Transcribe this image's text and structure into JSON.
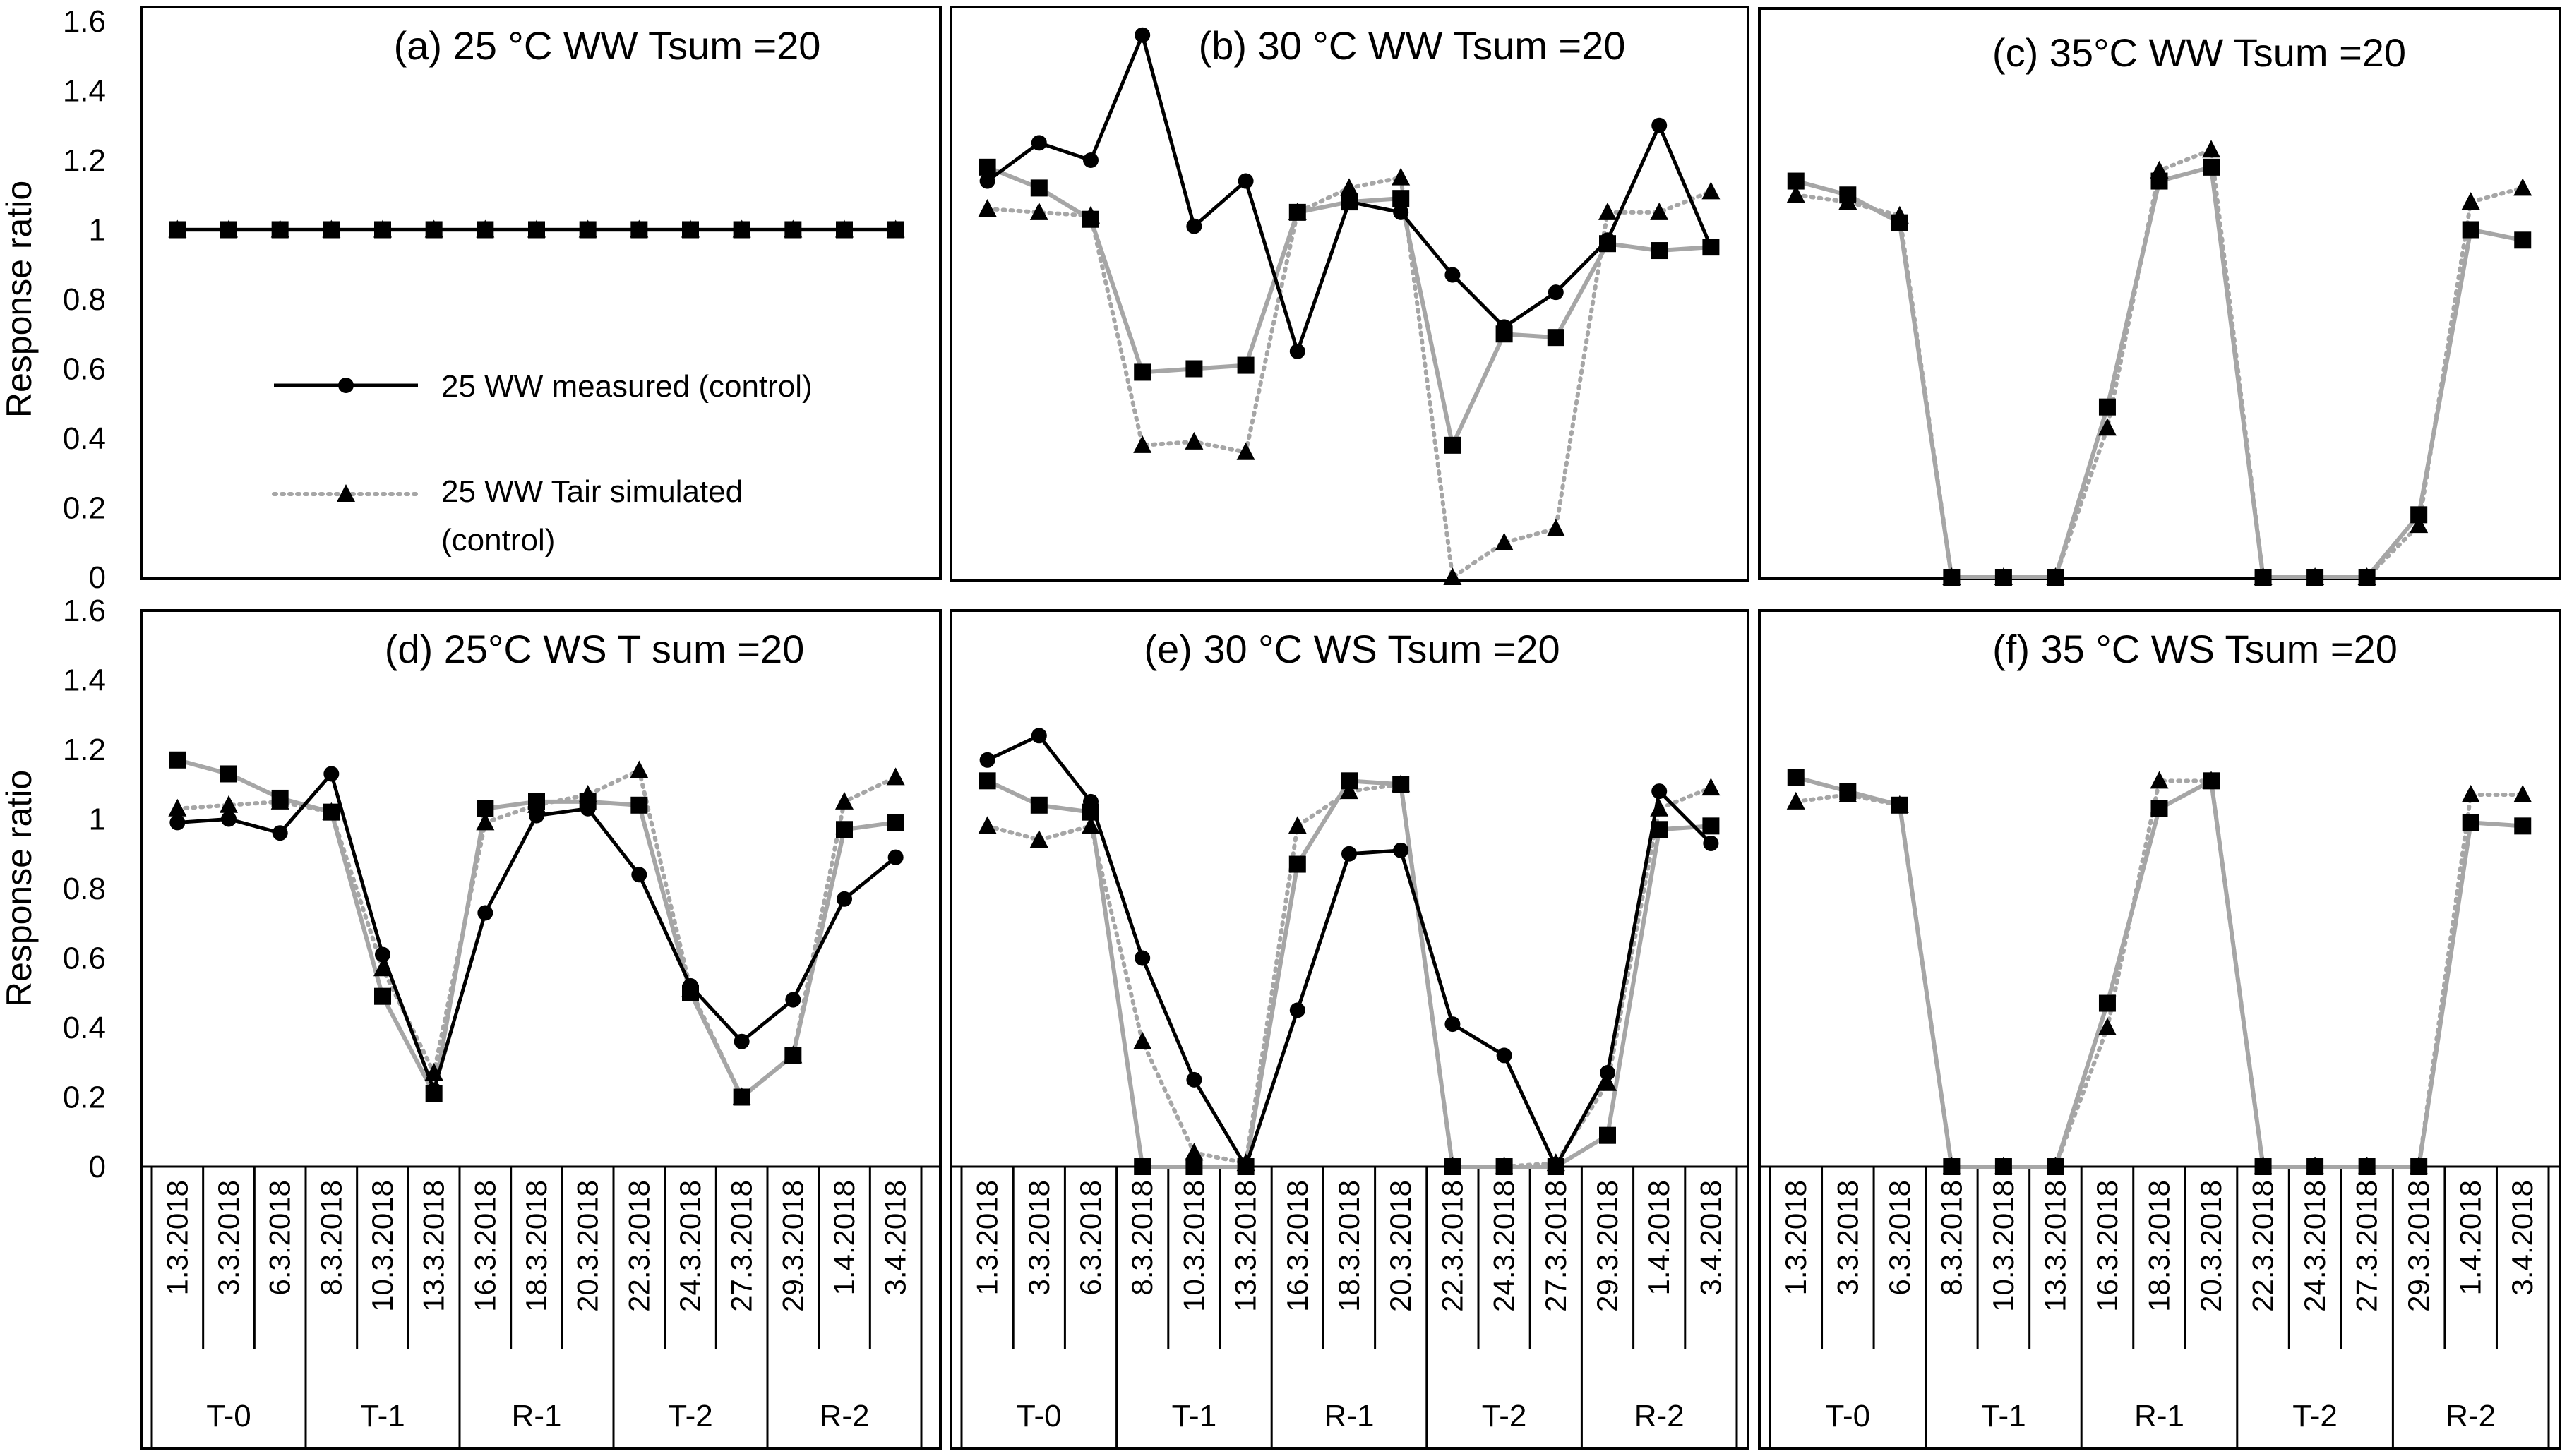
{
  "chart_data": [
    {
      "type": "line",
      "title": "(a) 25 °C WW Tsum =20",
      "ylabel": "Response ratio",
      "ylim": [
        0,
        1.6
      ],
      "yticks": [
        "0",
        "0.2",
        "0.4",
        "0.6",
        "0.8",
        "1",
        "1.2",
        "1.4",
        "1.6"
      ],
      "grid": false,
      "legend_position": "center-left",
      "series": [
        {
          "name": "25 WW measured (control)",
          "marker": "circle",
          "line": "solid",
          "color": "#000000",
          "values": [
            1,
            1,
            1,
            1,
            1,
            1,
            1,
            1,
            1,
            1,
            1,
            1,
            1,
            1,
            1
          ]
        },
        {
          "name": "",
          "marker": "square",
          "line": "solid",
          "color": "#a6a6a6",
          "values": [
            1,
            1,
            1,
            1,
            1,
            1,
            1,
            1,
            1,
            1,
            1,
            1,
            1,
            1,
            1
          ]
        },
        {
          "name": "25 WW Tair simulated (control)",
          "marker": "triangle",
          "line": "dotted",
          "color": "#a6a6a6",
          "values": [
            1,
            1,
            1,
            1,
            1,
            1,
            1,
            1,
            1,
            1,
            1,
            1,
            1,
            1,
            1
          ]
        }
      ]
    },
    {
      "type": "line",
      "title": "(b) 30 °C WW Tsum =20",
      "ylim": [
        0,
        1.6
      ],
      "series": [
        {
          "name": "",
          "marker": "circle",
          "line": "solid",
          "color": "#000000",
          "values": [
            1.14,
            1.25,
            1.2,
            1.56,
            1.01,
            1.14,
            0.65,
            1.08,
            1.05,
            0.87,
            0.72,
            0.82,
            0.97,
            1.3,
            0.95
          ]
        },
        {
          "name": "",
          "marker": "square",
          "line": "solid",
          "color": "#a6a6a6",
          "values": [
            1.18,
            1.12,
            1.03,
            0.59,
            0.6,
            0.61,
            1.05,
            1.08,
            1.09,
            0.38,
            0.7,
            0.69,
            0.96,
            0.94,
            0.95
          ]
        },
        {
          "name": "",
          "marker": "triangle",
          "line": "dotted",
          "color": "#a6a6a6",
          "values": [
            1.06,
            1.05,
            1.04,
            0.38,
            0.39,
            0.36,
            1.05,
            1.12,
            1.15,
            0.0,
            0.1,
            0.14,
            1.05,
            1.05,
            1.11
          ]
        }
      ]
    },
    {
      "type": "line",
      "title": "(c) 35°C WW Tsum =20",
      "ylim": [
        0,
        1.6
      ],
      "series": [
        {
          "name": "",
          "marker": "square",
          "line": "solid",
          "color": "#a6a6a6",
          "values": [
            1.14,
            1.1,
            1.02,
            0.0,
            0.0,
            0.0,
            0.49,
            1.14,
            1.18,
            0.0,
            0.0,
            0.0,
            0.18,
            1.0,
            0.97
          ]
        },
        {
          "name": "",
          "marker": "triangle",
          "line": "dotted",
          "color": "#a6a6a6",
          "values": [
            1.1,
            1.08,
            1.04,
            0.0,
            0.0,
            0.0,
            0.43,
            1.17,
            1.23,
            0.0,
            0.0,
            0.0,
            0.15,
            1.08,
            1.12
          ]
        }
      ]
    },
    {
      "type": "line",
      "title": "(d) 25°C WS T sum =20",
      "ylabel": "Response ratio",
      "ylim": [
        0,
        1.6
      ],
      "yticks": [
        "0",
        "0.2",
        "0.4",
        "0.6",
        "0.8",
        "1",
        "1.2",
        "1.4",
        "1.6"
      ],
      "series": [
        {
          "name": "",
          "marker": "circle",
          "line": "solid",
          "color": "#000000",
          "values": [
            0.99,
            1.0,
            0.96,
            1.13,
            0.61,
            0.22,
            0.73,
            1.01,
            1.03,
            0.84,
            0.52,
            0.36,
            0.48,
            0.77,
            0.89
          ]
        },
        {
          "name": "",
          "marker": "square",
          "line": "solid",
          "color": "#a6a6a6",
          "values": [
            1.17,
            1.13,
            1.06,
            1.02,
            0.49,
            0.21,
            1.03,
            1.05,
            1.05,
            1.04,
            0.5,
            0.2,
            0.32,
            0.97,
            0.99
          ]
        },
        {
          "name": "",
          "marker": "triangle",
          "line": "dotted",
          "color": "#a6a6a6",
          "values": [
            1.03,
            1.04,
            1.05,
            1.02,
            0.57,
            0.27,
            0.99,
            1.04,
            1.07,
            1.14,
            0.51,
            0.2,
            0.32,
            1.05,
            1.12
          ]
        }
      ]
    },
    {
      "type": "line",
      "title": "(e) 30 °C WS Tsum =20",
      "ylim": [
        0,
        1.6
      ],
      "series": [
        {
          "name": "",
          "marker": "circle",
          "line": "solid",
          "color": "#000000",
          "values": [
            1.17,
            1.24,
            1.05,
            0.6,
            0.25,
            0.0,
            0.45,
            0.9,
            0.91,
            0.41,
            0.32,
            0.0,
            0.27,
            1.08,
            0.93
          ]
        },
        {
          "name": "",
          "marker": "square",
          "line": "solid",
          "color": "#a6a6a6",
          "values": [
            1.11,
            1.04,
            1.02,
            0.0,
            0.0,
            0.0,
            0.87,
            1.11,
            1.1,
            0.0,
            0.0,
            0.0,
            0.09,
            0.97,
            0.98
          ]
        },
        {
          "name": "",
          "marker": "triangle",
          "line": "dotted",
          "color": "#a6a6a6",
          "values": [
            0.98,
            0.94,
            0.98,
            0.36,
            0.04,
            0.01,
            0.98,
            1.08,
            1.1,
            0.0,
            0.0,
            0.01,
            0.24,
            1.03,
            1.09
          ]
        }
      ]
    },
    {
      "type": "line",
      "title": "(f) 35 °C WS Tsum =20",
      "ylim": [
        0,
        1.6
      ],
      "series": [
        {
          "name": "",
          "marker": "square",
          "line": "solid",
          "color": "#a6a6a6",
          "values": [
            1.12,
            1.08,
            1.04,
            0.0,
            0.0,
            0.0,
            0.47,
            1.03,
            1.11,
            0.0,
            0.0,
            0.0,
            0.0,
            0.99,
            0.98
          ]
        },
        {
          "name": "",
          "marker": "triangle",
          "line": "dotted",
          "color": "#a6a6a6",
          "values": [
            1.05,
            1.07,
            1.04,
            0.0,
            0.0,
            0.0,
            0.4,
            1.11,
            1.11,
            0.0,
            0.0,
            0.0,
            0.0,
            1.07,
            1.07
          ]
        }
      ]
    }
  ],
  "x_dates": [
    "1.3.2018",
    "3.3.2018",
    "6.3.2018",
    "8.3.2018",
    "10.3.2018",
    "13.3.2018",
    "16.3.2018",
    "18.3.2018",
    "20.3.2018",
    "22.3.2018",
    "24.3.2018",
    "27.3.2018",
    "29.3.2018",
    "1.4.2018",
    "3.4.2018"
  ],
  "x_groups": [
    "T-0",
    "T-1",
    "R-1",
    "T-2",
    "R-2"
  ],
  "legend": [
    {
      "label_lines": [
        "25 WW measured (control)"
      ],
      "marker": "circle",
      "line": "solid",
      "color": "#000000"
    },
    {
      "label_lines": [
        "25 WW Tair simulated",
        "(control)"
      ],
      "marker": "triangle",
      "line": "dotted",
      "color": "#a6a6a6"
    }
  ],
  "colors": {
    "measured": "#000000",
    "simulated": "#a6a6a6",
    "frame": "#000000"
  }
}
